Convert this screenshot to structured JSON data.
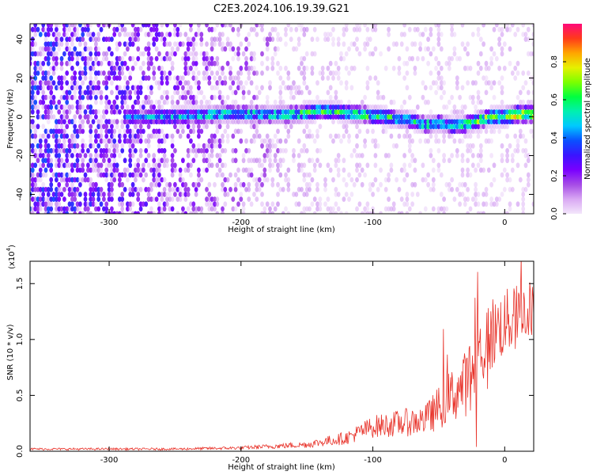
{
  "title": "C2E3.2024.106.19.39.G21",
  "chart_data": [
    {
      "type": "heatmap",
      "title": "C2E3.2024.106.19.39.G21",
      "xlabel": "Height of straight line (km)",
      "ylabel": "Frequency (Hz)",
      "xlim": [
        -360,
        22
      ],
      "ylim": [
        -50,
        48
      ],
      "xticks": [
        -300,
        -200,
        -100,
        0
      ],
      "yticks": [
        -40,
        -20,
        0,
        20,
        40
      ],
      "colorbar": {
        "label": "Normalized spectral amplitude",
        "range": [
          0.0,
          1.0
        ],
        "ticks": [
          "0.0",
          "0.2",
          "0.4",
          "0.6",
          "0.8"
        ],
        "colors": [
          "#f3e6fb",
          "#d9a8f3",
          "#a64ce6",
          "#7a00ff",
          "#3a14ff",
          "#0a50ff",
          "#00c8ff",
          "#00f0b0",
          "#00ff40",
          "#7cff00",
          "#e6f000",
          "#ffa500",
          "#ff3a1a",
          "#ff0a7a"
        ]
      },
      "ridge": [
        [
          -285,
          0,
          0.45
        ],
        [
          -270,
          0,
          0.5
        ],
        [
          -255,
          0,
          0.55
        ],
        [
          -240,
          0.5,
          0.55
        ],
        [
          -225,
          1,
          0.6
        ],
        [
          -210,
          1.5,
          0.6
        ],
        [
          -195,
          1.5,
          0.6
        ],
        [
          -180,
          1,
          0.6
        ],
        [
          -165,
          1,
          0.65
        ],
        [
          -150,
          2,
          0.7
        ],
        [
          -140,
          3,
          0.7
        ],
        [
          -130,
          3,
          0.7
        ],
        [
          -120,
          2,
          0.7
        ],
        [
          -110,
          1.5,
          0.7
        ],
        [
          -100,
          0.5,
          0.7
        ],
        [
          -90,
          0,
          0.65
        ],
        [
          -80,
          -1,
          0.65
        ],
        [
          -70,
          -2,
          0.65
        ],
        [
          -60,
          -4,
          0.65
        ],
        [
          -50,
          -3,
          0.6
        ],
        [
          -40,
          -5,
          0.6
        ],
        [
          -30,
          -4,
          0.7
        ],
        [
          -20,
          -2,
          0.75
        ],
        [
          -10,
          0,
          0.8
        ],
        [
          0,
          0,
          0.85
        ],
        [
          10,
          1.5,
          0.95
        ],
        [
          20,
          1.5,
          0.9
        ]
      ]
    },
    {
      "type": "line",
      "xlabel": "Height of straight line (km)",
      "ylabel": "SNR (10 * v/v)",
      "multiplier": "(x10",
      "multiplier_exp": "4",
      "multiplier_close": ")",
      "xlim": [
        -360,
        22
      ],
      "ylim": [
        0,
        1.7
      ],
      "xticks": [
        -300,
        -200,
        -100,
        0
      ],
      "yticks": [
        "0.0",
        "0.5",
        "1.0",
        "1.5"
      ],
      "color": "#e8332a",
      "envelope": [
        [
          -360,
          0.02,
          0.01
        ],
        [
          -250,
          0.02,
          0.01
        ],
        [
          -200,
          0.03,
          0.015
        ],
        [
          -150,
          0.06,
          0.03
        ],
        [
          -120,
          0.12,
          0.06
        ],
        [
          -100,
          0.22,
          0.1
        ],
        [
          -80,
          0.25,
          0.12
        ],
        [
          -60,
          0.28,
          0.14
        ],
        [
          -40,
          0.5,
          0.25
        ],
        [
          -30,
          0.6,
          0.3
        ],
        [
          -20,
          0.85,
          0.35
        ],
        [
          -10,
          1.05,
          0.35
        ],
        [
          0,
          1.15,
          0.3
        ],
        [
          10,
          1.2,
          0.3
        ],
        [
          22,
          1.3,
          0.25
        ]
      ]
    }
  ]
}
